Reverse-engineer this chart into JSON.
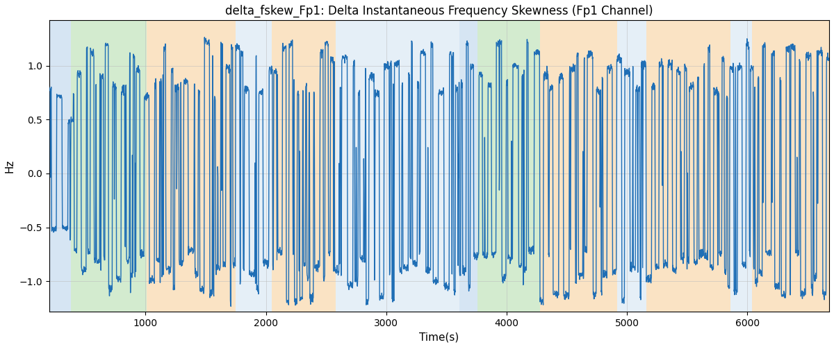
{
  "title": "delta_fskew_Fp1: Delta Instantaneous Frequency Skewness (Fp1 Channel)",
  "xlabel": "Time(s)",
  "ylabel": "Hz",
  "xlim": [
    200,
    6680
  ],
  "ylim": [
    -1.28,
    1.42
  ],
  "yticks": [
    -1.0,
    -0.5,
    0.0,
    0.5,
    1.0
  ],
  "xticks": [
    1000,
    2000,
    3000,
    4000,
    5000,
    6000
  ],
  "bg_regions": [
    {
      "xstart": 200,
      "xend": 380,
      "color": "#aecde8"
    },
    {
      "xstart": 380,
      "xend": 1010,
      "color": "#a8d8a0"
    },
    {
      "xstart": 1010,
      "xend": 1750,
      "color": "#f7c98a"
    },
    {
      "xstart": 1750,
      "xend": 2050,
      "color": "#cde0f0"
    },
    {
      "xstart": 2050,
      "xend": 2580,
      "color": "#f7c98a"
    },
    {
      "xstart": 2580,
      "xend": 3610,
      "color": "#cde0f0"
    },
    {
      "xstart": 3610,
      "xend": 3760,
      "color": "#aecde8"
    },
    {
      "xstart": 3760,
      "xend": 4280,
      "color": "#a8d8a0"
    },
    {
      "xstart": 4280,
      "xend": 4920,
      "color": "#f7c98a"
    },
    {
      "xstart": 4920,
      "xend": 5160,
      "color": "#cde0f0"
    },
    {
      "xstart": 5160,
      "xend": 5860,
      "color": "#f7c98a"
    },
    {
      "xstart": 5860,
      "xend": 6040,
      "color": "#cde0f0"
    },
    {
      "xstart": 6040,
      "xend": 6680,
      "color": "#f7c98a"
    }
  ],
  "line_color": "#1f6eb5",
  "line_width": 1.0,
  "grid_color": "#bbbbbb",
  "grid_alpha": 0.6,
  "title_fontsize": 12,
  "label_fontsize": 11,
  "tick_fontsize": 10,
  "seed": 42,
  "n_points": 3200
}
